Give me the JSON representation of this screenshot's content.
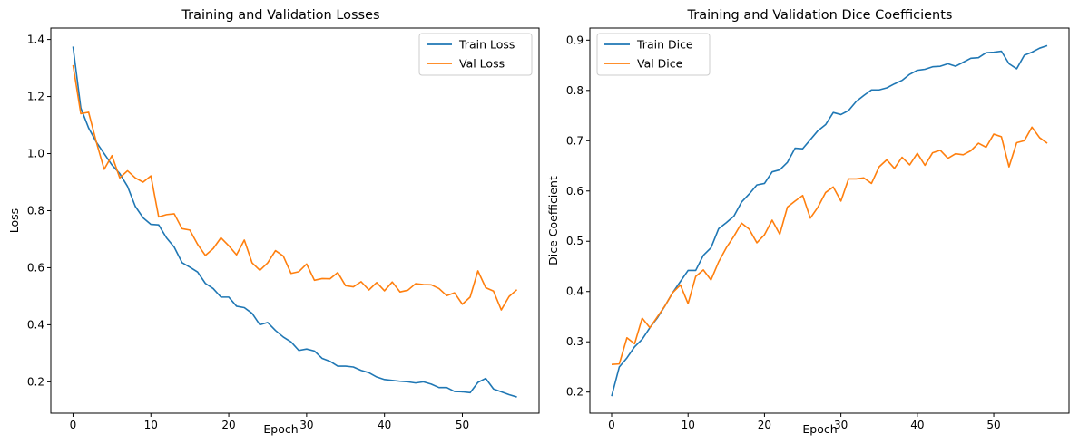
{
  "chart_data": [
    {
      "type": "line",
      "title": "Training and Validation Losses",
      "xlabel": "Epoch",
      "ylabel": "Loss",
      "xlim": [
        -2.85,
        59.85
      ],
      "ylim": [
        0.09,
        1.44
      ],
      "xticks": [
        0,
        10,
        20,
        30,
        40,
        50
      ],
      "yticks": [
        0.2,
        0.4,
        0.6,
        0.8,
        1.0,
        1.2,
        1.4
      ],
      "ytick_decimals": 1,
      "grid": false,
      "legend_position": "upper right",
      "series": [
        {
          "name": "Train Loss",
          "color": "#1f77b4",
          "values": [
            1.375,
            1.16,
            1.09,
            1.04,
            1.0,
            0.96,
            0.93,
            0.885,
            0.815,
            0.775,
            0.752,
            0.75,
            0.705,
            0.672,
            0.618,
            0.602,
            0.585,
            0.545,
            0.527,
            0.497,
            0.497,
            0.465,
            0.46,
            0.44,
            0.4,
            0.408,
            0.38,
            0.357,
            0.34,
            0.31,
            0.315,
            0.308,
            0.282,
            0.272,
            0.255,
            0.255,
            0.252,
            0.24,
            0.232,
            0.217,
            0.208,
            0.205,
            0.202,
            0.2,
            0.196,
            0.2,
            0.192,
            0.18,
            0.18,
            0.166,
            0.165,
            0.162,
            0.198,
            0.212,
            0.175,
            0.165,
            0.155,
            0.147
          ]
        },
        {
          "name": "Val Loss",
          "color": "#ff7f0e",
          "values": [
            1.31,
            1.14,
            1.145,
            1.04,
            0.945,
            0.993,
            0.915,
            0.94,
            0.915,
            0.9,
            0.922,
            0.778,
            0.786,
            0.789,
            0.737,
            0.732,
            0.682,
            0.643,
            0.667,
            0.705,
            0.677,
            0.645,
            0.697,
            0.617,
            0.591,
            0.617,
            0.66,
            0.641,
            0.58,
            0.586,
            0.613,
            0.556,
            0.562,
            0.561,
            0.583,
            0.537,
            0.533,
            0.551,
            0.522,
            0.548,
            0.519,
            0.55,
            0.515,
            0.521,
            0.544,
            0.541,
            0.54,
            0.527,
            0.502,
            0.512,
            0.472,
            0.497,
            0.589,
            0.53,
            0.518,
            0.452,
            0.499,
            0.523
          ]
        }
      ]
    },
    {
      "type": "line",
      "title": "Training and Validation Dice Coefficients",
      "xlabel": "Epoch",
      "ylabel": "Dice Coefficient",
      "xlim": [
        -2.85,
        59.85
      ],
      "ylim": [
        0.158,
        0.924
      ],
      "xticks": [
        0,
        10,
        20,
        30,
        40,
        50
      ],
      "yticks": [
        0.2,
        0.3,
        0.4,
        0.5,
        0.6,
        0.7,
        0.8,
        0.9
      ],
      "ytick_decimals": 1,
      "grid": false,
      "legend_position": "upper left",
      "series": [
        {
          "name": "Train Dice",
          "color": "#1f77b4",
          "values": [
            0.192,
            0.25,
            0.268,
            0.29,
            0.305,
            0.328,
            0.348,
            0.372,
            0.398,
            0.42,
            0.442,
            0.442,
            0.472,
            0.487,
            0.525,
            0.537,
            0.55,
            0.578,
            0.594,
            0.612,
            0.615,
            0.638,
            0.642,
            0.657,
            0.685,
            0.684,
            0.702,
            0.72,
            0.732,
            0.756,
            0.752,
            0.76,
            0.778,
            0.79,
            0.801,
            0.801,
            0.805,
            0.813,
            0.82,
            0.832,
            0.84,
            0.842,
            0.847,
            0.848,
            0.853,
            0.848,
            0.856,
            0.864,
            0.865,
            0.875,
            0.876,
            0.878,
            0.853,
            0.843,
            0.87,
            0.876,
            0.884,
            0.889
          ]
        },
        {
          "name": "Val Dice",
          "color": "#ff7f0e",
          "values": [
            0.255,
            0.256,
            0.308,
            0.296,
            0.347,
            0.328,
            0.35,
            0.372,
            0.398,
            0.413,
            0.376,
            0.43,
            0.443,
            0.423,
            0.459,
            0.487,
            0.51,
            0.536,
            0.524,
            0.497,
            0.513,
            0.542,
            0.514,
            0.568,
            0.58,
            0.591,
            0.546,
            0.568,
            0.597,
            0.608,
            0.58,
            0.624,
            0.624,
            0.626,
            0.615,
            0.648,
            0.662,
            0.645,
            0.667,
            0.652,
            0.675,
            0.651,
            0.676,
            0.681,
            0.665,
            0.674,
            0.672,
            0.68,
            0.695,
            0.687,
            0.713,
            0.708,
            0.648,
            0.696,
            0.7,
            0.727,
            0.706,
            0.695
          ]
        }
      ]
    }
  ]
}
